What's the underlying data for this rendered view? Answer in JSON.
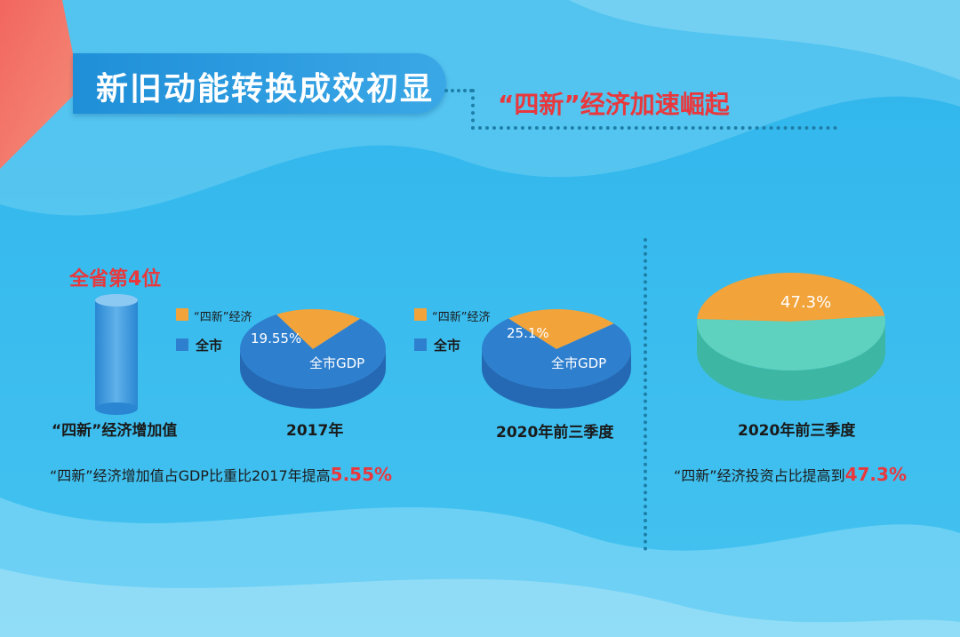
{
  "header": {
    "title": "新旧动能转换成效初显",
    "subtitle": "“四新”经济加速崛起"
  },
  "left_panel": {
    "rank_label": "全省第4位",
    "cylinder_caption": "“四新”经济增加值",
    "note_prefix": "“四新”经济增加值占GDP比重比2017年提高",
    "note_value": "5.55%"
  },
  "right_panel": {
    "note_prefix": "“四新”经济投资占比提高到",
    "note_value": "47.3%"
  },
  "legend": {
    "series_new": "“四新”经济",
    "series_city": "全市"
  },
  "colors": {
    "orange": "#f2a33a",
    "blue": "#2f7fcf",
    "teal": "#3db7a3",
    "red": "#e8383d"
  },
  "chart_data": [
    {
      "type": "pie",
      "title": "2017年",
      "slices": [
        {
          "name": "“四新”经济",
          "value": 19.55,
          "label": "19.55%"
        },
        {
          "name": "全市GDP",
          "value": 80.45,
          "label": "全市GDP"
        }
      ]
    },
    {
      "type": "pie",
      "title": "2020年前三季度",
      "slices": [
        {
          "name": "“四新”经济",
          "value": 25.1,
          "label": "25.1%"
        },
        {
          "name": "全市GDP",
          "value": 74.9,
          "label": "全市GDP"
        }
      ]
    },
    {
      "type": "pie",
      "title": "2020年前三季度",
      "slices": [
        {
          "name": "“四新”经济",
          "value": 47.3,
          "label": "47.3%"
        },
        {
          "name": "other",
          "value": 52.7,
          "label": ""
        }
      ]
    }
  ]
}
